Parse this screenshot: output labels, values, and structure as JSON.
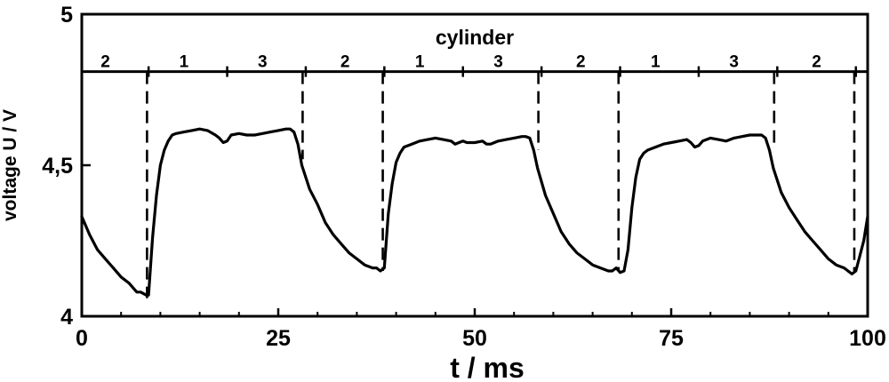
{
  "chart_data": {
    "type": "line",
    "xlabel": "t / ms",
    "ylabel": "voltage U / V",
    "xlim": [
      0,
      100
    ],
    "ylim": [
      4,
      5
    ],
    "x_ticks": [
      0,
      25,
      50,
      75,
      100
    ],
    "x_tick_labels": [
      "0",
      "25",
      "50",
      "75",
      "100"
    ],
    "y_ticks": [
      4,
      4.5,
      5
    ],
    "y_tick_labels": [
      "4",
      "4,5",
      "5"
    ],
    "grid": false,
    "band_label": "cylinder",
    "band_boundary_voltage": 4.81,
    "cylinder_labels": [
      {
        "t": 3,
        "label": "2"
      },
      {
        "t": 13,
        "label": "1"
      },
      {
        "t": 23,
        "label": "3"
      },
      {
        "t": 33.5,
        "label": "2"
      },
      {
        "t": 43,
        "label": "1"
      },
      {
        "t": 53,
        "label": "3"
      },
      {
        "t": 63.5,
        "label": "2"
      },
      {
        "t": 73,
        "label": "1"
      },
      {
        "t": 83,
        "label": "3"
      },
      {
        "t": 93.5,
        "label": "2"
      }
    ],
    "cylinder_minor_ticks": [
      8.5,
      18.5,
      28.5,
      38.5,
      48.5,
      58.5,
      68.5,
      78.5,
      88.5,
      98.5
    ],
    "dashed_markers": [
      {
        "t": 8.3,
        "v_top": 4.81,
        "v_bottom": 4.06
      },
      {
        "t": 28.1,
        "v_top": 4.81,
        "v_bottom": 4.52
      },
      {
        "t": 38.3,
        "v_top": 4.81,
        "v_bottom": 4.15
      },
      {
        "t": 58.1,
        "v_top": 4.81,
        "v_bottom": 4.55
      },
      {
        "t": 68.3,
        "v_top": 4.81,
        "v_bottom": 4.15
      },
      {
        "t": 88.1,
        "v_top": 4.81,
        "v_bottom": 4.56
      },
      {
        "t": 98.3,
        "v_top": 4.81,
        "v_bottom": 4.15
      }
    ],
    "series": [
      {
        "x": [
          0,
          1,
          2,
          3,
          4,
          5,
          6,
          7,
          7.5,
          8.2,
          8.5,
          9,
          9.5,
          10,
          10.5,
          11,
          11.5,
          12,
          13,
          14,
          15,
          16,
          17,
          17.5,
          18,
          18.5,
          19,
          20,
          21,
          22,
          23,
          24,
          25,
          26,
          26.5,
          27,
          27.5,
          28,
          29,
          30,
          31,
          32,
          33,
          34,
          35,
          36,
          37,
          37.5,
          38,
          38.5,
          39,
          39.5,
          40,
          40.5,
          41,
          42,
          43,
          44,
          45,
          46,
          47,
          47.5,
          48,
          48.5,
          49,
          50,
          51,
          51.5,
          52,
          53,
          54,
          55,
          56,
          56.5,
          57,
          57.5,
          58,
          59,
          60,
          61,
          62,
          63,
          64,
          65,
          66,
          67,
          67.5,
          68,
          68.5,
          69,
          69.5,
          70,
          70.5,
          71,
          71.5,
          72,
          73,
          74,
          75,
          76,
          77,
          77.5,
          78,
          78.5,
          79,
          80,
          81,
          82,
          83,
          84,
          85,
          86,
          86.5,
          87,
          87.5,
          88,
          89,
          90,
          91,
          92,
          93,
          94,
          95,
          96,
          97,
          97.5,
          98,
          98.5,
          99,
          99.5,
          100
        ],
        "values": [
          4.33,
          4.27,
          4.22,
          4.19,
          4.16,
          4.13,
          4.11,
          4.08,
          4.08,
          4.07,
          4.07,
          4.26,
          4.4,
          4.5,
          4.55,
          4.58,
          4.6,
          4.605,
          4.61,
          4.615,
          4.62,
          4.615,
          4.6,
          4.59,
          4.575,
          4.58,
          4.6,
          4.605,
          4.6,
          4.6,
          4.605,
          4.61,
          4.615,
          4.62,
          4.62,
          4.61,
          4.57,
          4.5,
          4.42,
          4.37,
          4.31,
          4.27,
          4.24,
          4.21,
          4.19,
          4.17,
          4.16,
          4.16,
          4.15,
          4.16,
          4.34,
          4.44,
          4.51,
          4.54,
          4.56,
          4.57,
          4.58,
          4.585,
          4.59,
          4.585,
          4.58,
          4.57,
          4.575,
          4.58,
          4.575,
          4.575,
          4.58,
          4.57,
          4.57,
          4.58,
          4.585,
          4.59,
          4.595,
          4.595,
          4.59,
          4.55,
          4.49,
          4.4,
          4.34,
          4.28,
          4.24,
          4.21,
          4.19,
          4.17,
          4.16,
          4.15,
          4.15,
          4.16,
          4.145,
          4.15,
          4.22,
          4.36,
          4.46,
          4.52,
          4.54,
          4.55,
          4.56,
          4.57,
          4.575,
          4.58,
          4.585,
          4.575,
          4.56,
          4.565,
          4.58,
          4.59,
          4.585,
          4.58,
          4.59,
          4.595,
          4.6,
          4.6,
          4.6,
          4.59,
          4.55,
          4.49,
          4.41,
          4.36,
          4.32,
          4.28,
          4.25,
          4.22,
          4.19,
          4.17,
          4.16,
          4.15,
          4.14,
          4.15,
          4.2,
          4.25,
          4.33
        ]
      }
    ]
  }
}
